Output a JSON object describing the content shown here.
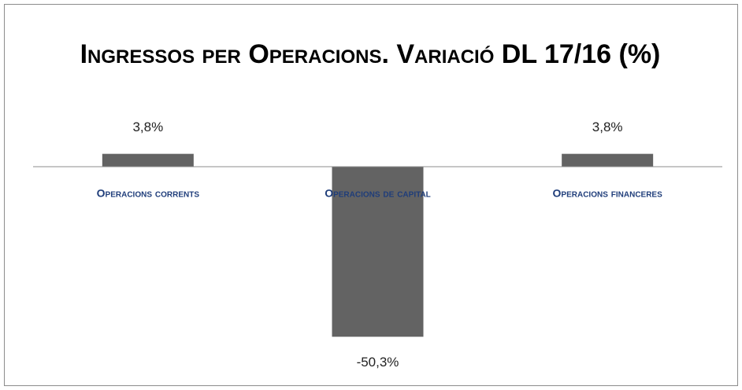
{
  "chart_data": {
    "type": "bar",
    "title": "Ingressos per Operacions. Variació DL 17/16 (%)",
    "categories": [
      "Operacions corrents",
      "Operacions de capital",
      "Operacions financeres"
    ],
    "values": [
      3.8,
      -50.3,
      3.8
    ],
    "value_labels": [
      "3,8%",
      "-50,3%",
      "3,8%"
    ],
    "color": "#636363"
  }
}
